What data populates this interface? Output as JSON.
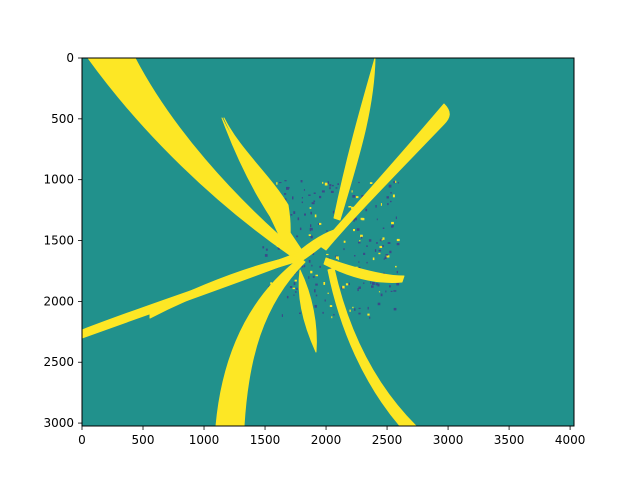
{
  "chart_data": {
    "type": "heatmap",
    "title": "",
    "xlabel": "",
    "ylabel": "",
    "xlim": [
      0,
      4032
    ],
    "ylim": [
      3024,
      0
    ],
    "x_ticks": [
      0,
      500,
      1000,
      1500,
      2000,
      2500,
      3000,
      3500,
      4000
    ],
    "y_ticks": [
      0,
      500,
      1000,
      1500,
      2000,
      2500,
      3000
    ],
    "x_tick_labels": [
      "0",
      "500",
      "1000",
      "1500",
      "2000",
      "2500",
      "3000",
      "3500",
      "4000"
    ],
    "y_tick_labels": [
      "0",
      "500",
      "1000",
      "1500",
      "2000",
      "2500",
      "3000"
    ],
    "colormap": "viridis",
    "classes": [
      {
        "value": 0,
        "color": "#440154"
      },
      {
        "value": 1,
        "color": "#21918c"
      },
      {
        "value": 2,
        "color": "#fde725"
      }
    ],
    "background_color": "#21918c",
    "foreground_color": "#fde725",
    "noise_color": "#3b4a8a",
    "grid": false,
    "legend": "none"
  }
}
